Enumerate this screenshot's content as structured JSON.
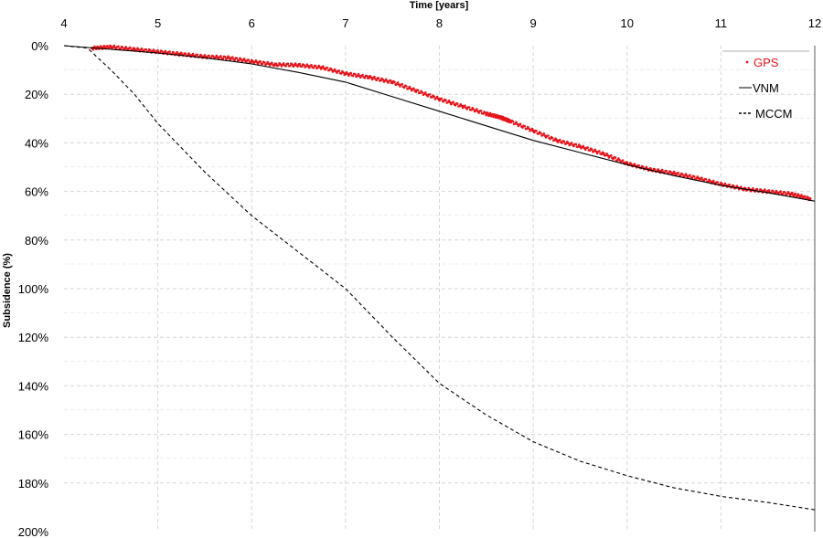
{
  "chart_data": {
    "type": "line",
    "xlabel": "Time [years]",
    "ylabel": "Subsidence (%)",
    "xlim": [
      4,
      12
    ],
    "ylim": [
      0,
      200
    ],
    "y_reversed": true,
    "x_axis_position": "top",
    "x_ticks": [
      "4",
      "5",
      "6",
      "7",
      "8",
      "9",
      "10",
      "11",
      "12"
    ],
    "y_ticks": [
      "0%",
      "20%",
      "40%",
      "60%",
      "80%",
      "100%",
      "120%",
      "140%",
      "160%",
      "180%",
      "200%"
    ],
    "grid": true,
    "legend_position": "top-right",
    "colors": {
      "GPS": "#e8141b",
      "VNM": "#000000",
      "MCCM": "#000000"
    },
    "series": [
      {
        "name": "GPS",
        "style": "dots",
        "x": [
          4.3,
          4.5,
          4.75,
          5.0,
          5.25,
          5.5,
          5.75,
          6.0,
          6.25,
          6.5,
          6.75,
          7.0,
          7.25,
          7.5,
          7.75,
          8.0,
          8.25,
          8.5,
          8.65,
          8.75,
          9.0,
          9.25,
          9.5,
          9.75,
          10.0,
          10.25,
          10.5,
          10.75,
          11.0,
          11.25,
          11.5,
          11.75,
          11.95
        ],
        "y": [
          1,
          0.5,
          1.5,
          2.5,
          3.5,
          4.5,
          5.0,
          6.5,
          7.8,
          8.0,
          9.0,
          11.5,
          13.0,
          15.0,
          18.5,
          22.0,
          25.0,
          28.0,
          29.5,
          31.0,
          35.0,
          39.0,
          41.5,
          44.5,
          48.5,
          51.0,
          52.5,
          54.5,
          57.0,
          59.0,
          60.0,
          61.0,
          63.0
        ]
      },
      {
        "name": "VNM",
        "style": "solid",
        "x": [
          4.0,
          4.5,
          5.0,
          5.5,
          6.0,
          6.5,
          7.0,
          7.5,
          8.0,
          8.5,
          9.0,
          9.5,
          10.0,
          10.5,
          11.0,
          11.5,
          12.0
        ],
        "y": [
          0,
          1.5,
          3.0,
          5.0,
          7.5,
          11.0,
          15.0,
          21.0,
          27.0,
          33.0,
          39.0,
          44.0,
          49.0,
          53.5,
          57.5,
          60.5,
          64.0
        ]
      },
      {
        "name": "MCCM",
        "style": "dashed",
        "x": [
          4.0,
          4.25,
          4.5,
          4.75,
          5.0,
          5.5,
          6.0,
          6.5,
          7.0,
          7.5,
          8.0,
          8.5,
          9.0,
          9.5,
          10.0,
          10.5,
          11.0,
          11.5,
          12.0
        ],
        "y": [
          0,
          1,
          10,
          20,
          32,
          52,
          70,
          85,
          100,
          120,
          139,
          152,
          163,
          171,
          177,
          182,
          185.5,
          188,
          191
        ]
      }
    ]
  }
}
